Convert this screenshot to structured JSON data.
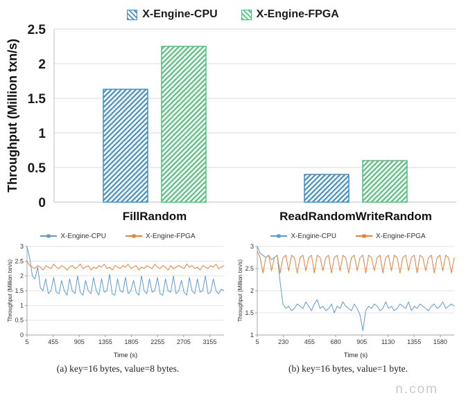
{
  "watermark": {
    "text": "n.com"
  },
  "chart_data": [
    {
      "id": "bar-top",
      "type": "bar",
      "title": "",
      "categories": [
        "FillRandom",
        "ReadRandomWriteRandom"
      ],
      "series": [
        {
          "name": "X-Engine-CPU",
          "values": [
            1.63,
            0.4
          ],
          "color": "#3d8ec9"
        },
        {
          "name": "X-Engine-FPGA",
          "values": [
            2.25,
            0.6
          ],
          "color": "#4fc278"
        }
      ],
      "xlabel": "",
      "ylabel": "Throughput (Million txn/s)",
      "ylim": [
        0,
        2.5
      ],
      "yticks": [
        0,
        0.5,
        1,
        1.5,
        2,
        2.5
      ],
      "grid": true,
      "legend_position": "top",
      "bar_style": "diagonal-hatch"
    },
    {
      "id": "line-a",
      "type": "line",
      "caption": "(a) key=16 bytes, value=8 bytes.",
      "xlabel": "Time (s)",
      "ylabel": "Throughput (Million txn/s)",
      "xlim": [
        5,
        3400
      ],
      "xticks": [
        5,
        455,
        905,
        1355,
        1805,
        2255,
        2705,
        3155
      ],
      "ylim": [
        0,
        3
      ],
      "yticks": [
        0,
        0.5,
        1,
        1.5,
        2,
        2.5,
        3
      ],
      "grid": true,
      "legend_position": "top",
      "series": [
        {
          "name": "X-Engine-CPU",
          "color": "#5b9bd5",
          "x_start": 5,
          "x_end": 3400,
          "values": [
            3.0,
            2.6,
            2.0,
            1.9,
            2.3,
            1.6,
            1.5,
            1.9,
            1.4,
            1.5,
            1.95,
            1.45,
            1.4,
            1.85,
            1.5,
            1.35,
            1.9,
            1.5,
            1.4,
            2.0,
            1.45,
            1.35,
            1.85,
            1.5,
            1.4,
            1.95,
            1.5,
            1.35,
            1.9,
            1.45,
            1.5,
            2.05,
            1.4,
            1.35,
            1.9,
            1.5,
            1.45,
            1.95,
            1.4,
            1.5,
            1.85,
            1.45,
            1.35,
            2.0,
            1.5,
            1.4,
            1.9,
            1.45,
            1.5,
            1.95,
            1.4,
            1.35,
            1.9,
            1.5,
            1.45,
            2.0,
            1.4,
            1.5,
            1.85,
            1.45,
            1.35,
            1.95,
            1.5,
            1.4,
            1.9,
            1.45,
            1.5,
            2.0,
            1.4,
            1.45,
            1.9,
            1.5,
            1.4,
            1.55,
            1.5
          ]
        },
        {
          "name": "X-Engine-FPGA",
          "color": "#ed7d31",
          "x_start": 5,
          "x_end": 3400,
          "values": [
            2.5,
            2.35,
            2.3,
            2.25,
            2.35,
            2.3,
            2.2,
            2.35,
            2.3,
            2.25,
            2.4,
            2.3,
            2.25,
            2.35,
            2.3,
            2.2,
            2.3,
            2.35,
            2.25,
            2.3,
            2.4,
            2.25,
            2.3,
            2.35,
            2.2,
            2.3,
            2.25,
            2.35,
            2.3,
            2.4,
            2.25,
            2.3,
            2.2,
            2.35,
            2.3,
            2.25,
            2.35,
            2.3,
            2.4,
            2.25,
            2.3,
            2.35,
            2.2,
            2.3,
            2.25,
            2.35,
            2.3,
            2.25,
            2.4,
            2.3,
            2.25,
            2.35,
            2.3,
            2.2,
            2.35,
            2.25,
            2.3,
            2.35,
            2.3,
            2.25,
            2.4,
            2.3,
            2.35,
            2.25,
            2.3,
            2.2,
            2.35,
            2.3,
            2.25,
            2.35,
            2.3,
            2.4,
            2.25,
            2.3,
            2.35
          ]
        }
      ]
    },
    {
      "id": "line-b",
      "type": "line",
      "caption": "(b) key=16 bytes, value=1 byte.",
      "xlabel": "Time (s)",
      "ylabel": "Throughput (Million txn/s)",
      "xlim": [
        5,
        1700
      ],
      "xticks": [
        5,
        230,
        455,
        680,
        905,
        1130,
        1355,
        1580
      ],
      "ylim": [
        1,
        3
      ],
      "yticks": [
        1,
        1.5,
        2,
        2.5,
        3
      ],
      "grid": true,
      "legend_position": "top",
      "series": [
        {
          "name": "X-Engine-CPU",
          "color": "#5b9bd5",
          "x_start": 5,
          "x_end": 1700,
          "values": [
            3.0,
            2.85,
            2.8,
            2.75,
            2.8,
            2.7,
            2.75,
            2.8,
            2.2,
            1.7,
            1.6,
            1.65,
            1.55,
            1.6,
            1.7,
            1.65,
            1.6,
            1.75,
            1.65,
            1.55,
            1.7,
            1.8,
            1.6,
            1.65,
            1.55,
            1.6,
            1.7,
            1.5,
            1.65,
            1.6,
            1.75,
            1.65,
            1.6,
            1.55,
            1.7,
            1.6,
            1.45,
            1.1,
            1.55,
            1.65,
            1.6,
            1.7,
            1.65,
            1.55,
            1.6,
            1.75,
            1.6,
            1.65,
            1.55,
            1.6,
            1.7,
            1.65,
            1.6,
            1.75,
            1.55,
            1.65,
            1.6,
            1.7,
            1.65,
            1.6,
            1.55,
            1.65,
            1.7,
            1.6,
            1.65,
            1.75,
            1.6,
            1.65,
            1.7,
            1.65
          ]
        },
        {
          "name": "X-Engine-FPGA",
          "color": "#ed7d31",
          "x_start": 5,
          "x_end": 1700,
          "values": [
            2.9,
            2.75,
            2.4,
            2.75,
            2.8,
            2.45,
            2.75,
            2.8,
            2.4,
            2.75,
            2.8,
            2.45,
            2.8,
            2.75,
            2.4,
            2.75,
            2.8,
            2.45,
            2.75,
            2.8,
            2.4,
            2.8,
            2.75,
            2.45,
            2.75,
            2.8,
            2.4,
            2.75,
            2.8,
            2.45,
            2.8,
            2.75,
            2.4,
            2.75,
            2.8,
            2.45,
            2.75,
            2.8,
            2.4,
            2.8,
            2.75,
            2.45,
            2.75,
            2.8,
            2.4,
            2.75,
            2.8,
            2.45,
            2.8,
            2.75,
            2.4,
            2.75,
            2.8,
            2.45,
            2.75,
            2.8,
            2.4,
            2.8,
            2.75,
            2.45,
            2.75,
            2.8,
            2.4,
            2.75,
            2.8,
            2.45,
            2.8,
            2.75,
            2.4,
            2.75
          ]
        }
      ]
    }
  ]
}
